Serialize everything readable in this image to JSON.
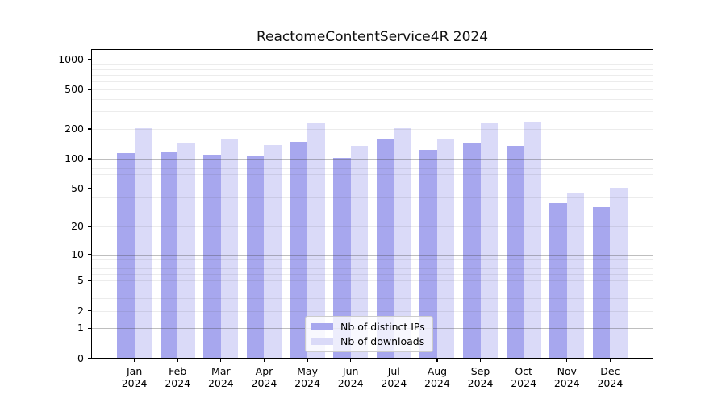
{
  "chart_data": {
    "type": "bar",
    "title": "ReactomeContentService4R 2024",
    "categories": [
      "Jan",
      "Feb",
      "Mar",
      "Apr",
      "May",
      "Jun",
      "Jul",
      "Aug",
      "Sep",
      "Oct",
      "Nov",
      "Dec"
    ],
    "year_label": "2024",
    "series": [
      {
        "name": "Nb of distinct IPs",
        "color": "#a7a7ee",
        "values": [
          115,
          119,
          110,
          106,
          148,
          102,
          159,
          123,
          144,
          136,
          35,
          32
        ]
      },
      {
        "name": "Nb of downloads",
        "color": "#dadaf8",
        "values": [
          205,
          146,
          161,
          138,
          229,
          135,
          204,
          156,
          229,
          237,
          44,
          51
        ]
      }
    ],
    "y_scale": "log1p",
    "y_ticks": [
      1000,
      500,
      200,
      100,
      50,
      20,
      10,
      5,
      2,
      1,
      0
    ],
    "ylim": [
      0,
      1270
    ],
    "xlabel": "",
    "ylabel": "",
    "grid": "both-horizontal",
    "legend_position": "lower-center-inside"
  },
  "colors": {
    "background": "#ffffff",
    "spine": "#000000",
    "major_grid": "rgba(70,70,70,0.35)",
    "minor_grid": "rgba(70,70,70,0.10)"
  }
}
